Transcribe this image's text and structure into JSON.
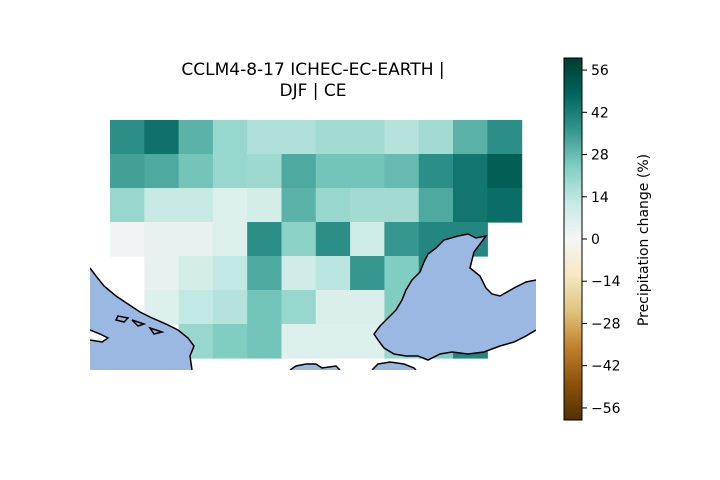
{
  "title_line1": "CCLM4-8-17 ICHEC-EC-EARTH |",
  "title_line2": "DJF | CE",
  "colorbar": {
    "label": "Precipitation change (%)",
    "vmin": -60,
    "vmax": 60,
    "ticks": [
      56,
      42,
      28,
      14,
      0,
      -14,
      -28,
      -42,
      -56
    ],
    "tick_labels": [
      "56",
      "42",
      "28",
      "14",
      "0",
      "−14",
      "−28",
      "−42",
      "−56"
    ],
    "colormap": "BrBG"
  },
  "colors": {
    "sea": "#9ab8e2",
    "coast": "#000000"
  },
  "grid": {
    "columns": 13,
    "rows": 7,
    "values": [
      [
        38,
        45,
        30,
        20,
        16,
        16,
        18,
        18,
        15,
        18,
        30,
        38,
        null
      ],
      [
        34,
        32,
        26,
        20,
        19,
        32,
        26,
        26,
        28,
        38,
        44,
        50,
        null
      ],
      [
        20,
        12,
        12,
        6,
        9,
        30,
        20,
        18,
        18,
        32,
        44,
        46,
        null
      ],
      [
        1,
        4,
        4,
        6,
        38,
        22,
        38,
        10,
        36,
        40,
        40,
        null,
        null
      ],
      [
        null,
        4,
        9,
        13,
        32,
        10,
        14,
        36,
        24,
        40,
        null,
        null,
        null
      ],
      [
        null,
        6,
        13,
        15,
        26,
        20,
        7,
        7,
        24,
        null,
        null,
        null,
        null
      ],
      [
        null,
        null,
        20,
        24,
        26,
        6,
        6,
        6,
        20,
        24,
        40,
        null,
        null
      ]
    ]
  }
}
